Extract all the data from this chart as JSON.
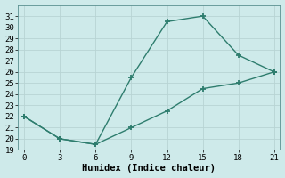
{
  "line1_x": [
    0,
    3,
    6,
    9,
    12,
    15,
    18,
    21
  ],
  "line1_y": [
    22,
    20,
    19.5,
    25.5,
    30.5,
    31,
    27.5,
    26
  ],
  "line2_x": [
    0,
    3,
    6,
    9,
    12,
    15,
    18,
    21
  ],
  "line2_y": [
    22,
    20,
    19.5,
    21,
    22.5,
    24.5,
    25,
    26
  ],
  "line_color": "#2e7d6e",
  "marker": "+",
  "marker_size": 5,
  "marker_lw": 1.3,
  "line_width": 1.0,
  "xlabel": "Humidex (Indice chaleur)",
  "xlim": [
    -0.5,
    21.5
  ],
  "ylim": [
    19,
    32
  ],
  "xticks": [
    0,
    3,
    6,
    9,
    12,
    15,
    18,
    21
  ],
  "yticks": [
    19,
    20,
    21,
    22,
    23,
    24,
    25,
    26,
    27,
    28,
    29,
    30,
    31
  ],
  "bg_color": "#ceeaea",
  "grid_color": "#b8d4d4",
  "label_fontsize": 7.5,
  "tick_fontsize": 6.5
}
